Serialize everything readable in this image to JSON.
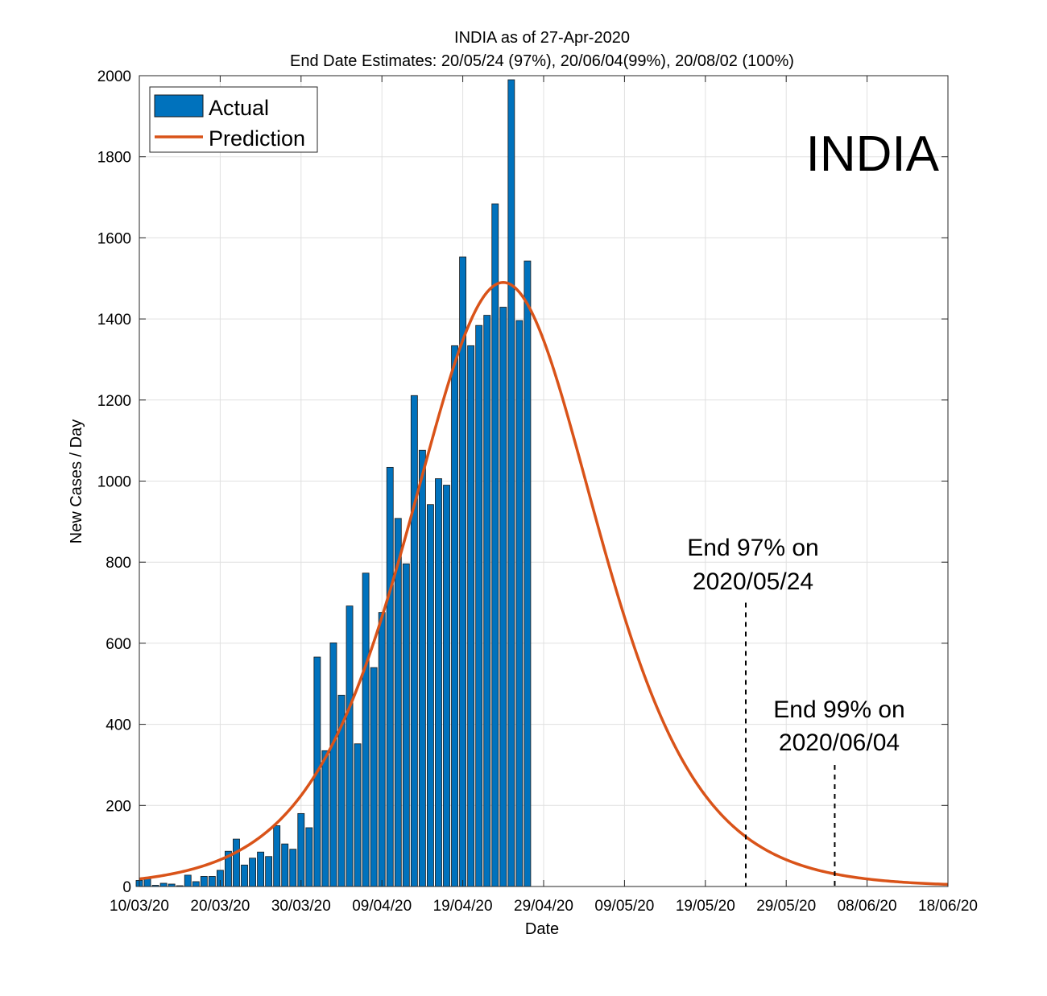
{
  "chart_data": {
    "type": "bar",
    "title": "INDIA as of 27-Apr-2020",
    "subtitle": "End Date Estimates: 20/05/24 (97%), 20/06/04(99%), 20/08/02 (100%)",
    "xlabel": "Date",
    "ylabel": "New Cases / Day",
    "ylim": [
      0,
      2000
    ],
    "yticks": [
      0,
      200,
      400,
      600,
      800,
      1000,
      1200,
      1400,
      1600,
      1800,
      2000
    ],
    "x_start_date": "2020-03-10",
    "x_end_date": "2020-06-18",
    "xticks": [
      {
        "label": "10/03/20",
        "date": "2020-03-10"
      },
      {
        "label": "20/03/20",
        "date": "2020-03-20"
      },
      {
        "label": "30/03/20",
        "date": "2020-03-30"
      },
      {
        "label": "09/04/20",
        "date": "2020-04-09"
      },
      {
        "label": "19/04/20",
        "date": "2020-04-19"
      },
      {
        "label": "29/04/20",
        "date": "2020-04-29"
      },
      {
        "label": "09/05/20",
        "date": "2020-05-09"
      },
      {
        "label": "19/05/20",
        "date": "2020-05-19"
      },
      {
        "label": "29/05/20",
        "date": "2020-05-29"
      },
      {
        "label": "08/06/20",
        "date": "2020-06-08"
      },
      {
        "label": "18/06/20",
        "date": "2020-06-18"
      }
    ],
    "grid": true,
    "legend_position": "top-left",
    "series": [
      {
        "name": "Actual",
        "type": "bar",
        "color": "#0072BD",
        "start_date": "2020-03-10",
        "values": [
          15,
          22,
          3,
          8,
          6,
          2,
          28,
          12,
          25,
          25,
          40,
          87,
          117,
          53,
          70,
          85,
          74,
          150,
          105,
          92,
          180,
          145,
          566,
          335,
          601,
          472,
          692,
          352,
          773,
          540,
          676,
          1034,
          908,
          796,
          1211,
          1076,
          942,
          1006,
          990,
          1334,
          1553,
          1334,
          1384,
          1409,
          1684,
          1429,
          1990,
          1396,
          1543
        ]
      },
      {
        "name": "Prediction",
        "type": "line",
        "color": "#D95319",
        "peak_date": "2020-04-24",
        "peak_value": 1490
      }
    ],
    "annotations": [
      {
        "text": "INDIA"
      },
      {
        "lines": [
          "End 97% on",
          "2020/05/24"
        ],
        "date": "2020-05-24",
        "marker_top": 700
      },
      {
        "lines": [
          "End 99% on",
          "2020/06/04"
        ],
        "date": "2020-06-04",
        "marker_top": 300
      }
    ]
  }
}
